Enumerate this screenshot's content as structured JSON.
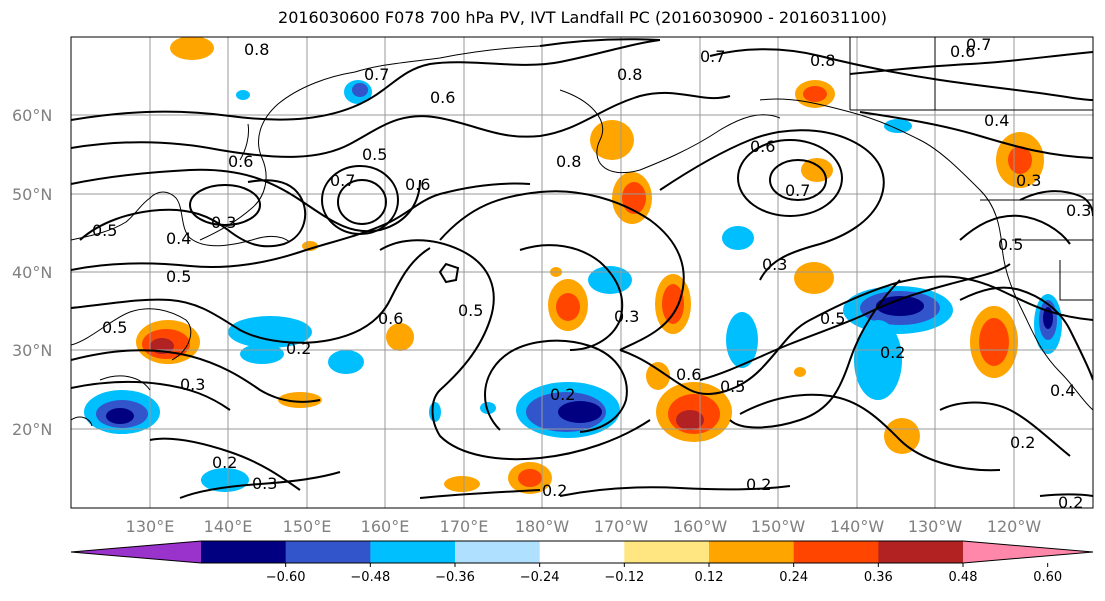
{
  "title": "2016030600 F078 700 hPa PV, IVT Landfall PC (2016030900 - 2016031100)",
  "lat_labels": [
    "60°N",
    "50°N",
    "40°N",
    "30°N",
    "20°N"
  ],
  "lon_labels": [
    "130°E",
    "140°E",
    "150°E",
    "160°E",
    "170°E",
    "180°W",
    "170°W",
    "160°W",
    "150°W",
    "140°W",
    "130°W",
    "120°W"
  ],
  "colorbar": {
    "ticks": [
      "−0.60",
      "−0.48",
      "−0.36",
      "−0.24",
      "−0.12",
      "0.12",
      "0.24",
      "0.36",
      "0.48",
      "0.60"
    ],
    "colors": [
      "#9933cc",
      "#000080",
      "#3355cc",
      "#00bfff",
      "#b0e0ff",
      "#ffffff",
      "#ffe680",
      "#ffa500",
      "#ff4500",
      "#b22222",
      "#ff88aa"
    ]
  },
  "contour_labels": [
    "0.8",
    "0.7",
    "0.6",
    "0.8",
    "0.7",
    "0.8",
    "0.6",
    "0.5",
    "0.6",
    "0.7",
    "0.6",
    "0.8",
    "0.7",
    "0.6",
    "0.7",
    "0.4",
    "0.3",
    "0.3",
    "0.5",
    "0.4",
    "0.3",
    "0.5",
    "0.5",
    "0.5",
    "0.2",
    "0.6",
    "0.5",
    "0.3",
    "0.3",
    "0.5",
    "0.6",
    "0.2",
    "0.5",
    "0.2",
    "0.4",
    "0.2",
    "0.3",
    "0.2",
    "0.2",
    "0.3",
    "0.2",
    "0.2"
  ]
}
